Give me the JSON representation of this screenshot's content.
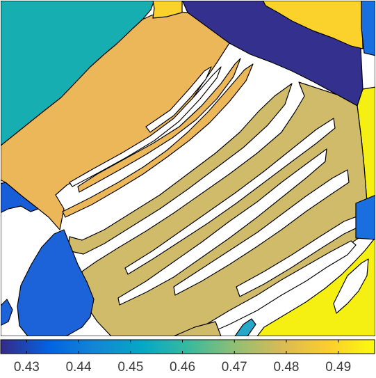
{
  "chart_data": {
    "type": "heatmap",
    "title": "",
    "xlabel": "",
    "ylabel": "",
    "colormap": "parula",
    "colorbar": {
      "orientation": "horizontal",
      "placement": "bottom",
      "range": [
        0.425,
        0.497
      ],
      "ticks": [
        0.43,
        0.44,
        0.45,
        0.46,
        0.47,
        0.48,
        0.49
      ],
      "tick_labels": [
        "0.43",
        "0.44",
        "0.45",
        "0.46",
        "0.47",
        "0.48",
        "0.49"
      ]
    },
    "regions": [
      {
        "name": "grain-white-matrix",
        "value": null,
        "color": "#ffffff"
      },
      {
        "name": "grain-teal-top-left",
        "value": 0.453,
        "color": "#17aeb2"
      },
      {
        "name": "grain-navy-top",
        "value": 0.429,
        "color": "#33308e"
      },
      {
        "name": "grain-yellow-top-strip",
        "value": 0.488,
        "color": "#fbd12c"
      },
      {
        "name": "grain-yellow-top-right",
        "value": 0.488,
        "color": "#fbd12c"
      },
      {
        "name": "grain-blue-right-edge",
        "value": 0.44,
        "color": "#1a6fe0"
      },
      {
        "name": "grain-orange-band",
        "value": 0.479,
        "color": "#ecb758"
      },
      {
        "name": "grain-olive-band",
        "value": 0.473,
        "color": "#d0bb6a"
      },
      {
        "name": "grain-blue-left",
        "value": 0.438,
        "color": "#185ed8"
      },
      {
        "name": "grain-blue-mid-left",
        "value": 0.439,
        "color": "#1c62d8"
      },
      {
        "name": "grain-bright-yellow-right",
        "value": 0.495,
        "color": "#f5f012"
      },
      {
        "name": "grain-teal-small",
        "value": 0.452,
        "color": "#28a7c8"
      }
    ]
  }
}
